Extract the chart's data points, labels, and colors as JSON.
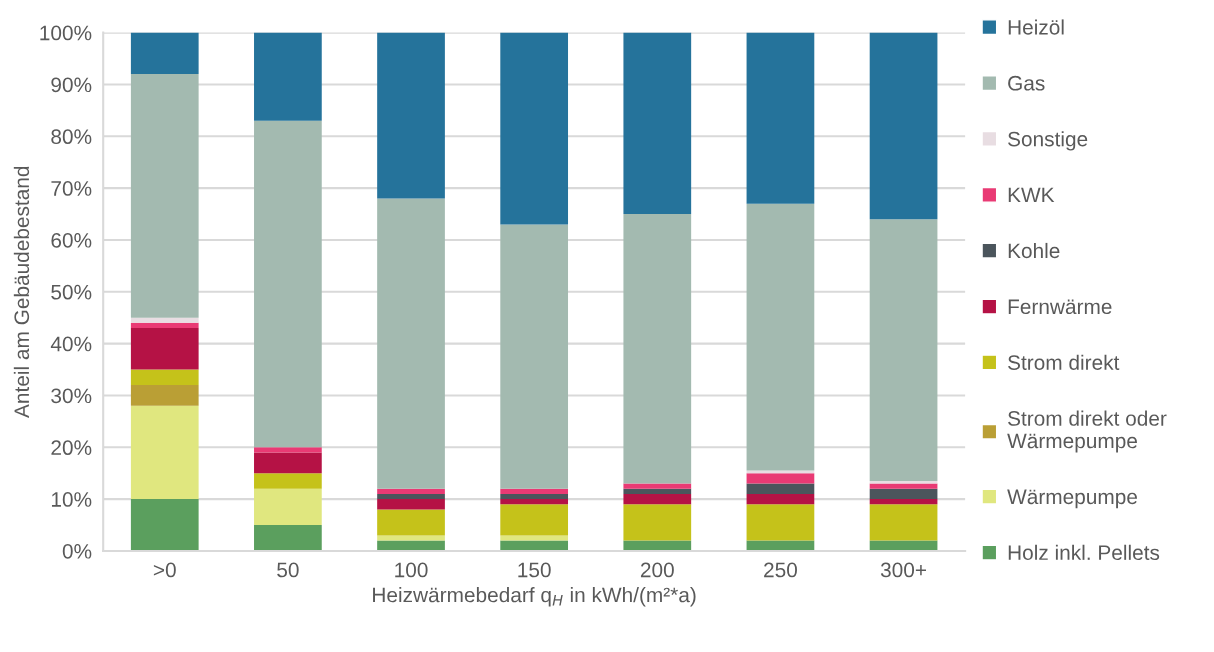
{
  "chart_data": {
    "type": "bar",
    "stacked": true,
    "xlabel": "Heizwärmebedarf q$_{H}$ in kWh/(m²*a)",
    "ylabel": "Anteil am Gebäudebestand",
    "categories": [
      ">0",
      "50",
      "100",
      "150",
      "200",
      "250",
      "300+"
    ],
    "series": [
      {
        "name": "Holz inkl. Pellets",
        "color": "#5b9f5e",
        "values": [
          10,
          5,
          2,
          2,
          2,
          2,
          2
        ]
      },
      {
        "name": "Wärmepumpe",
        "color": "#e0e77f",
        "values": [
          18,
          7,
          1,
          1,
          0,
          0,
          0
        ]
      },
      {
        "name": "Strom direkt oder Wärmepumpe",
        "color": "#ba9f35",
        "values": [
          4,
          0,
          0,
          0,
          0,
          0,
          0
        ]
      },
      {
        "name": "Strom direkt",
        "color": "#c5c21a",
        "values": [
          3,
          3,
          5,
          6,
          7,
          7,
          7
        ]
      },
      {
        "name": "Fernwärme",
        "color": "#b51245",
        "values": [
          8,
          4,
          2,
          1,
          2,
          2,
          1
        ]
      },
      {
        "name": "Kohle",
        "color": "#4b555c",
        "values": [
          0,
          0,
          1,
          1,
          1,
          2,
          2
        ]
      },
      {
        "name": "KWK",
        "color": "#e93a74",
        "values": [
          1,
          1,
          1,
          1,
          1,
          2,
          1
        ]
      },
      {
        "name": "Sonstige",
        "color": "#e8dde2",
        "values": [
          1,
          0,
          0,
          0,
          0,
          0.5,
          0.5
        ]
      },
      {
        "name": "Gas",
        "color": "#a3bab0",
        "values": [
          47,
          63,
          56,
          51,
          52,
          51.5,
          50.5
        ]
      },
      {
        "name": "Heizöl",
        "color": "#25739b",
        "values": [
          8,
          17,
          32,
          37,
          35,
          33,
          36
        ]
      }
    ],
    "ylim": [
      0,
      100
    ],
    "yticks": [
      {
        "value": 0,
        "label": "0%"
      },
      {
        "value": 10,
        "label": "10%"
      },
      {
        "value": 20,
        "label": "20%"
      },
      {
        "value": 30,
        "label": "30%"
      },
      {
        "value": 40,
        "label": "40%"
      },
      {
        "value": 50,
        "label": "50%"
      },
      {
        "value": 60,
        "label": "60%"
      },
      {
        "value": 70,
        "label": "70%"
      },
      {
        "value": 80,
        "label": "80%"
      },
      {
        "value": 90,
        "label": "90%"
      },
      {
        "value": 100,
        "label": "100%"
      }
    ],
    "grid": "y",
    "legend": "right"
  }
}
